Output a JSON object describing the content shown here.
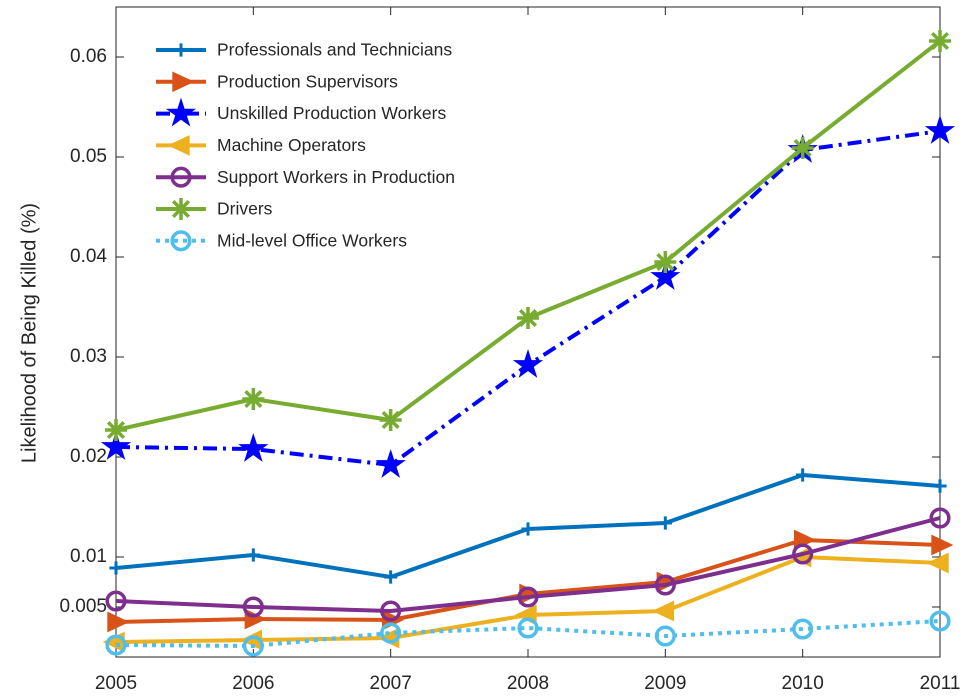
{
  "chart_data": {
    "type": "line",
    "ylabel": "Likelihood of Being Killed (%)",
    "x": [
      2005,
      2006,
      2007,
      2008,
      2009,
      2010,
      2011
    ],
    "xlim": [
      2005,
      2011
    ],
    "xticks": [
      2005,
      2006,
      2007,
      2008,
      2009,
      2010,
      2011
    ],
    "ylim": [
      0,
      0.065
    ],
    "yticks": [
      0.005,
      0.01,
      0.02,
      0.03,
      0.04,
      0.05,
      0.06
    ],
    "grid": false,
    "legend": "upper left",
    "series": [
      {
        "name": "Professionals and Technicians",
        "color": "#0072bd",
        "marker": "plus",
        "linestyle": "solid",
        "values": [
          0.0089,
          0.0102,
          0.008,
          0.0128,
          0.0134,
          0.0182,
          0.0171
        ]
      },
      {
        "name": "Production Supervisors",
        "color": "#d95319",
        "marker": "triangle-right",
        "linestyle": "solid",
        "values": [
          0.0035,
          0.0038,
          0.0037,
          0.0063,
          0.0075,
          0.0117,
          0.0112
        ]
      },
      {
        "name": "Unskilled Production Workers",
        "color": "#0000ff",
        "marker": "star",
        "linestyle": "dashdot",
        "values": [
          0.021,
          0.0208,
          0.0192,
          0.0292,
          0.038,
          0.0507,
          0.0526
        ]
      },
      {
        "name": "Machine Operators",
        "color": "#edb120",
        "marker": "triangle-left",
        "linestyle": "solid",
        "values": [
          0.0015,
          0.0017,
          0.0019,
          0.0042,
          0.0046,
          0.01,
          0.0094
        ]
      },
      {
        "name": "Support Workers in Production",
        "color": "#7e2f8e",
        "marker": "circle",
        "linestyle": "solid",
        "values": [
          0.0056,
          0.005,
          0.0046,
          0.006,
          0.0072,
          0.0103,
          0.0139
        ]
      },
      {
        "name": "Drivers",
        "color": "#77ac30",
        "marker": "asterisk",
        "linestyle": "solid",
        "values": [
          0.0227,
          0.0258,
          0.0237,
          0.0339,
          0.0395,
          0.0509,
          0.0616
        ]
      },
      {
        "name": "Mid-level Office Workers",
        "color": "#4dbeee",
        "marker": "circle",
        "linestyle": "dotted",
        "values": [
          0.0012,
          0.0011,
          0.0024,
          0.0029,
          0.0021,
          0.0028,
          0.0036
        ]
      }
    ]
  }
}
